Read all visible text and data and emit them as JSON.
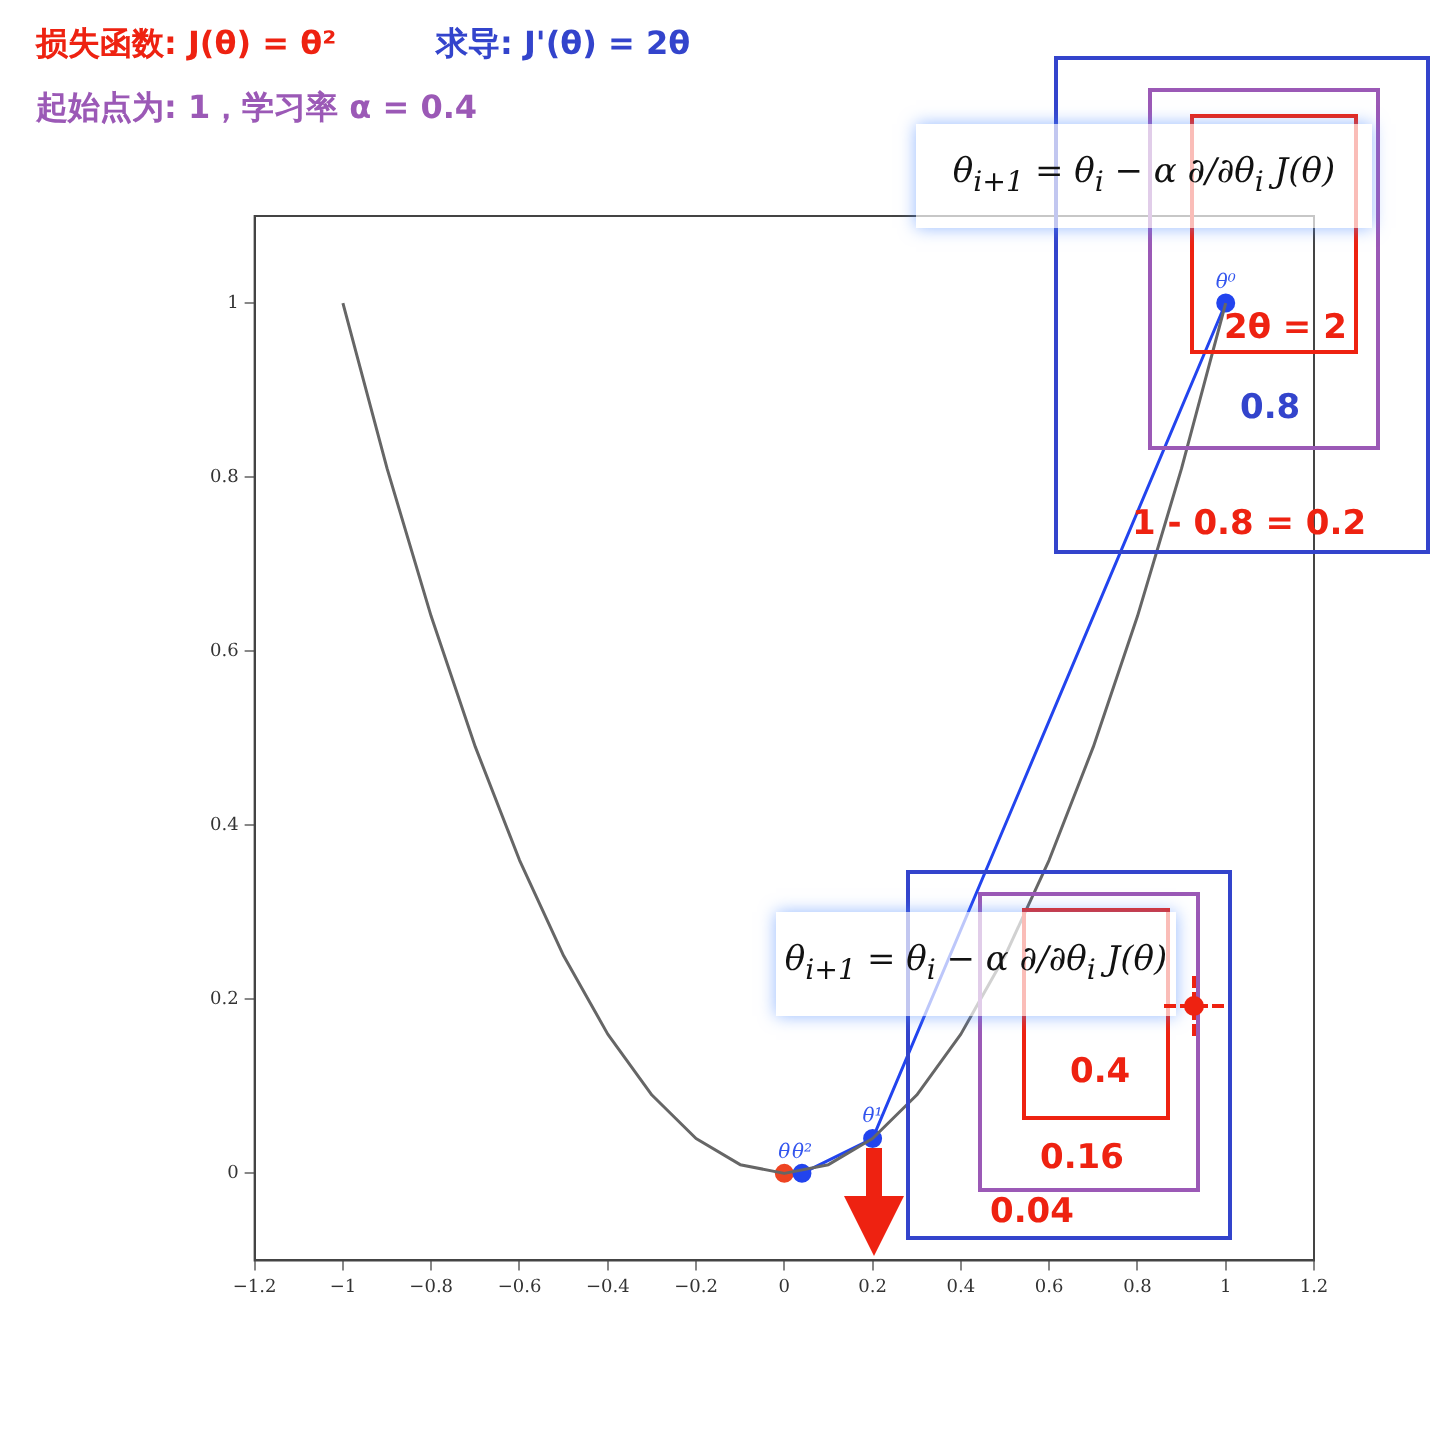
{
  "chart_data": {
    "type": "line",
    "title": "损失函数: J(θ) = θ²",
    "subtitle": "起始点为: 1，学习率 α = 0.4",
    "xlim": [
      -1.2,
      1.2
    ],
    "ylim": [
      -0.1,
      1.1
    ],
    "xticks": [
      {
        "value": -1.2,
        "label": "−1.2"
      },
      {
        "value": -1,
        "label": "−1"
      },
      {
        "value": -0.8,
        "label": "−0.8"
      },
      {
        "value": -0.6,
        "label": "−0.6"
      },
      {
        "value": -0.4,
        "label": "−0.4"
      },
      {
        "value": -0.2,
        "label": "−0.2"
      },
      0,
      0.2,
      0.4,
      0.6,
      0.8,
      1,
      1.2
    ],
    "yticks": [
      0,
      0.2,
      0.4,
      0.6,
      0.8,
      1
    ],
    "grid": false,
    "legend": false,
    "series": [
      {
        "type": "line",
        "color": "#666666",
        "marker": "none",
        "x": [
          -1,
          -0.9,
          -0.8,
          -0.7,
          -0.6,
          -0.5,
          -0.4,
          -0.3,
          -0.2,
          -0.1,
          0,
          0.1,
          0.2,
          0.3,
          0.4,
          0.5,
          0.6,
          0.7,
          0.8,
          0.9,
          1
        ],
        "values": [
          1,
          0.81,
          0.64,
          0.49,
          0.36,
          0.25,
          0.16,
          0.09,
          0.04,
          0.01,
          0,
          0.01,
          0.04,
          0.09,
          0.16,
          0.25,
          0.36,
          0.49,
          0.64,
          0.81,
          1
        ]
      },
      {
        "type": "line",
        "color": "#2244ee",
        "marker": "circle",
        "x": [
          1,
          0.2,
          0.04
        ],
        "values": [
          1,
          0.04,
          0
        ]
      },
      {
        "type": "scatter",
        "color": "#ee4422",
        "marker": "circle",
        "x": [
          0
        ],
        "values": [
          0
        ]
      }
    ],
    "annotations": [
      "求导: J'(θ) = 2θ",
      "θ$_{i+1}$ = θ$_{i}$ − α ∂/∂θ$_{i}$ J(θ)",
      "2θ = 2",
      "0.8",
      "1 - 0.8 = 0.2",
      "θ$_{i+1}$ = θ$_{i}$ − α ∂/∂θ$_{i}$ J(θ)",
      "0.4",
      "0.16",
      "0.04",
      {
        "text": "θ⁰",
        "x": 1,
        "y": 1
      },
      {
        "text": "θ¹",
        "x": 0.2,
        "y": 0.04
      },
      {
        "text": "θ²",
        "x": 0.04,
        "y": 0
      },
      {
        "text": "θ",
        "x": 0,
        "y": 0
      }
    ]
  }
}
